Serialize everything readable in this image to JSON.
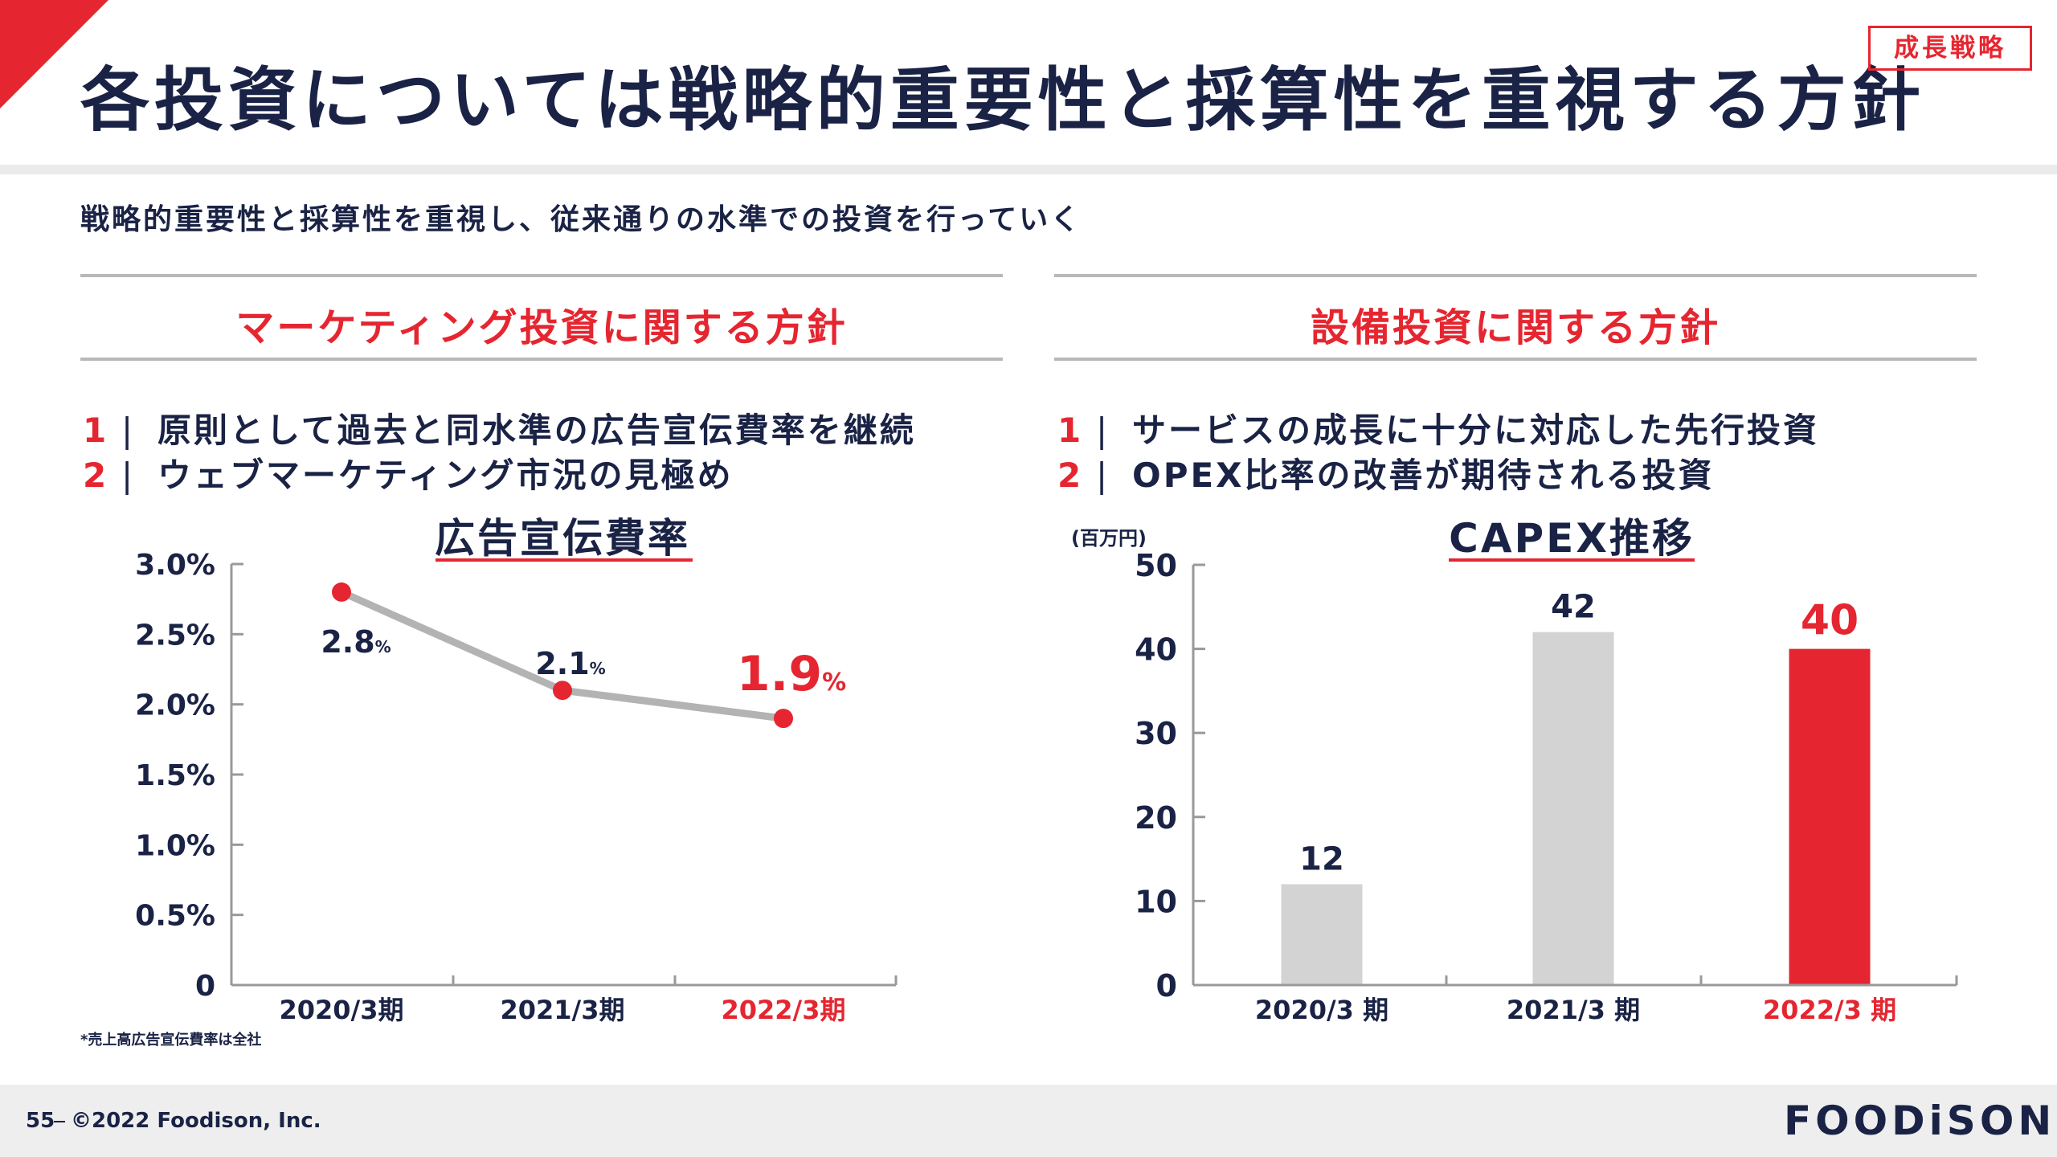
{
  "header": {
    "title": "各投資については戦略的重要性と採算性を重視する方針",
    "tag": "成長戦略",
    "subtitle": "戦略的重要性と採算性を重視し、従来通りの水準での投資を行っていく"
  },
  "marketing": {
    "heading": "マーケティング投資に関する方針",
    "points": [
      {
        "num": "1",
        "sep": "|",
        "text": "原則として過去と同水準の広告宣伝費率を継続"
      },
      {
        "num": "2",
        "sep": "|",
        "text": "ウェブマーケティング市況の見極め"
      }
    ],
    "chart_title": "広告宣伝費率",
    "footnote": "*売上高広告宣伝費率は全社"
  },
  "capex": {
    "heading": "設備投資に関する方針",
    "points": [
      {
        "num": "1",
        "sep": "|",
        "text": "サービスの成長に十分に対応した先行投資"
      },
      {
        "num": "2",
        "sep": "|",
        "text": "OPEX比率の改善が期待される投資"
      }
    ],
    "chart_title": "CAPEX推移",
    "unit": "(百万円)"
  },
  "colors": {
    "accent": "#e52630",
    "navy": "#1a2345",
    "gray_bar": "#d3d3d3",
    "line": "#b3b3b3"
  },
  "chart_data": [
    {
      "type": "line",
      "title": "広告宣伝費率",
      "categories": [
        "2020/3期",
        "2021/3期",
        "2022/3期"
      ],
      "values": [
        2.8,
        2.1,
        1.9
      ],
      "data_labels": [
        "2.8",
        "2.1",
        "1.9"
      ],
      "label_suffix": "%",
      "y_ticks": [
        "0",
        "0.5%",
        "1.0%",
        "1.5%",
        "2.0%",
        "2.5%",
        "3.0%"
      ],
      "ylim": [
        0,
        3.0
      ],
      "highlight_index": 2
    },
    {
      "type": "bar",
      "title": "CAPEX推移",
      "ylabel": "(百万円)",
      "categories": [
        "2020/3 期",
        "2021/3 期",
        "2022/3 期"
      ],
      "values": [
        12,
        42,
        40
      ],
      "data_labels": [
        "12",
        "42",
        "40"
      ],
      "y_ticks": [
        "0",
        "10",
        "20",
        "30",
        "40",
        "50"
      ],
      "ylim": [
        0,
        50
      ],
      "highlight_index": 2
    }
  ],
  "footer": {
    "page": "55",
    "copyright": "©2022 Foodison, Inc.",
    "logo": "FOODiSON"
  }
}
